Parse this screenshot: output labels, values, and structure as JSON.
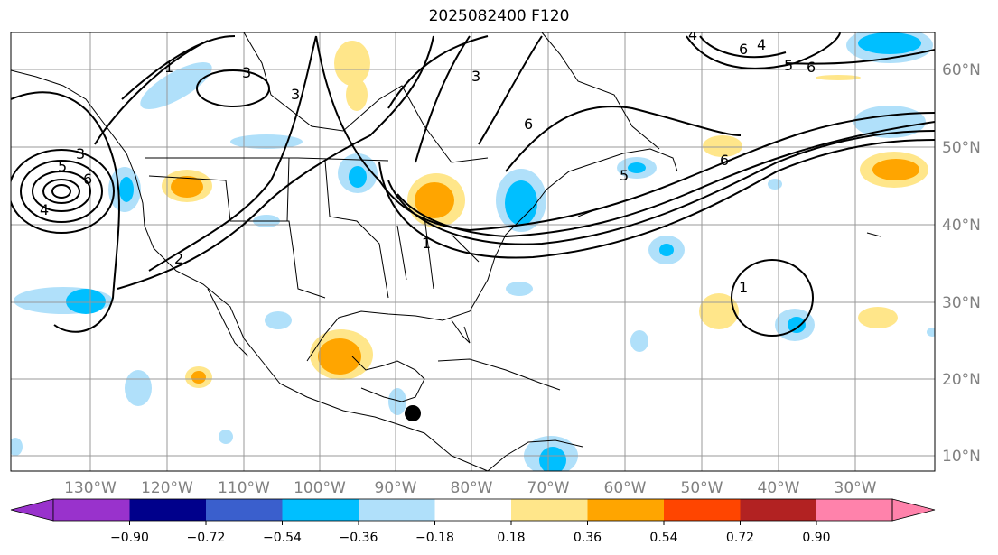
{
  "map": {
    "title": "2025082400 F120",
    "lon_labels": [
      "130°W",
      "120°W",
      "110°W",
      "100°W",
      "90°W",
      "80°W",
      "70°W",
      "60°W",
      "50°W",
      "40°W",
      "30°W"
    ],
    "lat_labels": [
      "60°N",
      "50°N",
      "40°N",
      "30°N",
      "20°N",
      "10°N"
    ],
    "contour_labels": [
      "1",
      "3",
      "3",
      "6",
      "4",
      "5",
      "6",
      "5",
      "6",
      "3",
      "2",
      "1",
      "1",
      "6",
      "4",
      "3",
      "6",
      "5",
      "4"
    ],
    "colorbar": {
      "ticks": [
        "−0.90",
        "−0.72",
        "−0.54",
        "−0.36",
        "−0.18",
        "0.18",
        "0.36",
        "0.54",
        "0.72",
        "0.90"
      ],
      "colors": [
        "#9932cc",
        "#00008b",
        "#3a5fcd",
        "#00bfff",
        "#b0e0fa",
        "#ffffff",
        "#ffe68a",
        "#ffa500",
        "#ff4500",
        "#b22222",
        "#ff82ab"
      ]
    },
    "marker": "storm-center-marker"
  }
}
